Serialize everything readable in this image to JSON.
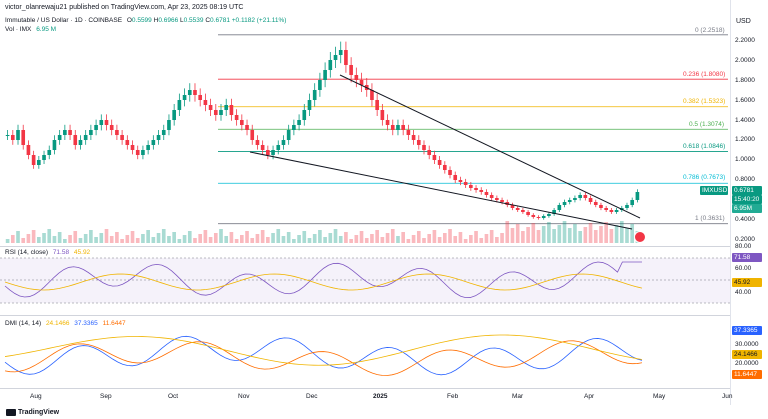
{
  "publisher": "victor_olanrewaju21 published on TradingView.com, Apr 23, 2025 08:19 UTC",
  "currency": "USD",
  "symbol_title": "Immutable / US Dollar · 1D · COINBASE",
  "ohlc": {
    "o_label": "O",
    "o": "0.5599",
    "h_label": "H",
    "h": "0.6966",
    "l_label": "L",
    "l": "0.5539",
    "c_label": "C",
    "c": "0.6781",
    "chg": "+0.1182 (+21.11%)"
  },
  "vol": {
    "label": "Vol · IMX",
    "value": "6.95 M"
  },
  "price_axis": [
    "2.2000",
    "2.0000",
    "1.8000",
    "1.6000",
    "1.4000",
    "1.2000",
    "1.0000",
    "0.8000",
    "0.4000",
    "0.2000"
  ],
  "fib_levels": [
    {
      "label": "0 (2.2518)",
      "price": 2.2518,
      "color": "#787b86"
    },
    {
      "label": "0.236 (1.8080)",
      "price": 1.808,
      "color": "#f23645"
    },
    {
      "label": "0.382 (1.5323)",
      "price": 1.5323,
      "color": "#f0b400"
    },
    {
      "label": "0.5 (1.3074)",
      "price": 1.3074,
      "color": "#4caf50"
    },
    {
      "label": "0.618 (1.0846)",
      "price": 1.0846,
      "color": "#089981"
    },
    {
      "label": "0.786 (0.7673)",
      "price": 0.7673,
      "color": "#00bcd4"
    },
    {
      "label": "1 (0.3631)",
      "price": 0.3631,
      "color": "#787b86"
    }
  ],
  "price_tags": {
    "symbol": "IMXUSD",
    "price": "0.6781",
    "countdown": "15:40:20",
    "volume": "6.95M"
  },
  "rsi": {
    "label": "RSI (14, close)",
    "value1": "71.58",
    "value2": "45.92",
    "axis": [
      "80.00",
      "60.00",
      "40.00"
    ],
    "tag1": "71.58",
    "tag2": "45.92"
  },
  "dmi": {
    "label": "DMI (14, 14)",
    "v_adx": "24.1466",
    "v_plus": "37.3365",
    "v_minus": "11.6447",
    "axis": [
      "30.0000",
      "20.0000"
    ],
    "tag_plus": "37.3365",
    "tag_adx": "24.1466",
    "tag_minus": "11.6447"
  },
  "time_axis": [
    "Aug",
    "Sep",
    "Oct",
    "Nov",
    "Dec",
    "2025",
    "Feb",
    "Mar",
    "Apr",
    "May",
    "Jun"
  ],
  "brand": "TradingView",
  "colors": {
    "up": "#089981",
    "down": "#f23645",
    "rsi": "#7e57c2",
    "dmi_plus": "#2962ff",
    "dmi_minus": "#ff6d00",
    "adx": "#f0b400"
  },
  "chart_data": {
    "type": "candlestick",
    "title": "Immutable / US Dollar · 1D · COINBASE",
    "ylim": [
      0.2,
      2.3
    ],
    "closes": [
      1.25,
      1.2,
      1.3,
      1.15,
      1.05,
      0.95,
      1.0,
      1.05,
      1.1,
      1.2,
      1.25,
      1.3,
      1.25,
      1.15,
      1.2,
      1.25,
      1.3,
      1.35,
      1.4,
      1.35,
      1.3,
      1.25,
      1.2,
      1.15,
      1.1,
      1.05,
      1.1,
      1.15,
      1.2,
      1.25,
      1.3,
      1.4,
      1.5,
      1.6,
      1.65,
      1.7,
      1.65,
      1.6,
      1.55,
      1.5,
      1.45,
      1.5,
      1.55,
      1.45,
      1.4,
      1.35,
      1.3,
      1.2,
      1.15,
      1.1,
      1.05,
      1.1,
      1.15,
      1.2,
      1.3,
      1.35,
      1.4,
      1.5,
      1.6,
      1.7,
      1.8,
      1.9,
      2.0,
      2.05,
      2.1,
      1.95,
      1.85,
      1.8,
      1.75,
      1.7,
      1.6,
      1.5,
      1.4,
      1.35,
      1.3,
      1.35,
      1.3,
      1.25,
      1.2,
      1.15,
      1.1,
      1.05,
      1.0,
      0.95,
      0.9,
      0.85,
      0.8,
      0.78,
      0.75,
      0.72,
      0.7,
      0.68,
      0.65,
      0.62,
      0.6,
      0.58,
      0.55,
      0.52,
      0.5,
      0.48,
      0.45,
      0.43,
      0.42,
      0.44,
      0.46,
      0.5,
      0.55,
      0.58,
      0.6,
      0.62,
      0.65,
      0.62,
      0.58,
      0.55,
      0.52,
      0.5,
      0.48,
      0.5,
      0.52,
      0.55,
      0.6,
      0.68
    ],
    "trendlines": [
      "upper",
      "lower"
    ]
  }
}
